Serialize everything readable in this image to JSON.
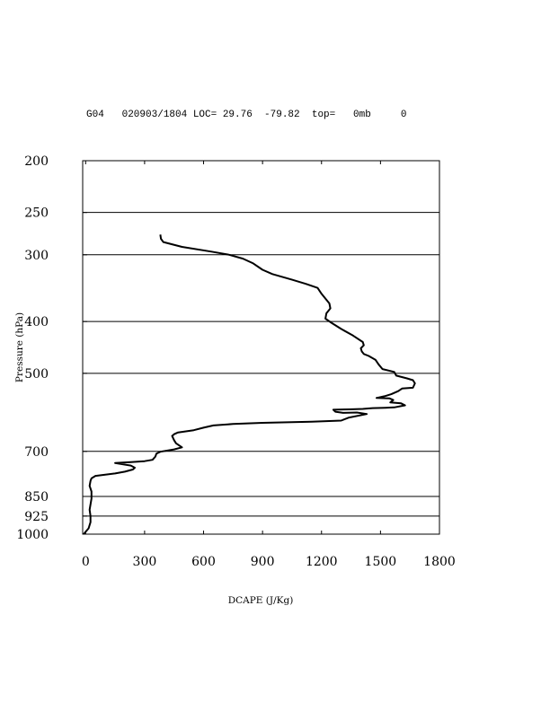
{
  "header": {
    "text": "G04   020903/1804 LOC= 29.76  -79.82  top=   0mb     0"
  },
  "chart_data": {
    "type": "line",
    "xlabel": "DCAPE (J/Kg)",
    "ylabel": "Pressure (hPa)",
    "xlim": [
      -15,
      1800
    ],
    "ylim": [
      1000,
      200
    ],
    "y_scale": "log",
    "grid": "horizontal",
    "x_ticks": [
      0,
      300,
      600,
      900,
      1200,
      1500,
      1800
    ],
    "x_tick_labels": [
      "0",
      "300",
      "600",
      "900",
      "1200",
      "1500",
      "1800"
    ],
    "y_ticks": [
      200,
      250,
      300,
      400,
      500,
      700,
      850,
      925,
      1000
    ],
    "y_tick_labels": [
      "200",
      "250",
      "300",
      "400",
      "500",
      "700",
      "850",
      "925",
      "1000"
    ],
    "gridlines_y": [
      250,
      300,
      400,
      500,
      700,
      850,
      925
    ],
    "series": [
      {
        "values": [
          [
            380,
            275
          ],
          [
            383,
            280
          ],
          [
            395,
            284
          ],
          [
            490,
            290
          ],
          [
            640,
            296
          ],
          [
            730,
            300
          ],
          [
            800,
            305
          ],
          [
            850,
            311
          ],
          [
            900,
            320
          ],
          [
            950,
            326
          ],
          [
            1050,
            334
          ],
          [
            1120,
            340
          ],
          [
            1180,
            346
          ],
          [
            1200,
            355
          ],
          [
            1240,
            370
          ],
          [
            1245,
            378
          ],
          [
            1225,
            386
          ],
          [
            1220,
            395
          ],
          [
            1250,
            402
          ],
          [
            1300,
            413
          ],
          [
            1360,
            425
          ],
          [
            1410,
            437
          ],
          [
            1415,
            443
          ],
          [
            1400,
            449
          ],
          [
            1405,
            455
          ],
          [
            1415,
            460
          ],
          [
            1440,
            464
          ],
          [
            1475,
            472
          ],
          [
            1490,
            481
          ],
          [
            1510,
            491
          ],
          [
            1570,
            497
          ],
          [
            1580,
            505
          ],
          [
            1635,
            511
          ],
          [
            1665,
            515
          ],
          [
            1675,
            522
          ],
          [
            1665,
            532
          ],
          [
            1610,
            534
          ],
          [
            1590,
            540
          ],
          [
            1555,
            547
          ],
          [
            1520,
            552
          ],
          [
            1480,
            556
          ],
          [
            1545,
            557
          ],
          [
            1565,
            561
          ],
          [
            1550,
            567
          ],
          [
            1605,
            569
          ],
          [
            1625,
            574
          ],
          [
            1570,
            579
          ],
          [
            1525,
            580
          ],
          [
            1460,
            581
          ],
          [
            1410,
            583
          ],
          [
            1340,
            584
          ],
          [
            1260,
            585
          ],
          [
            1270,
            590
          ],
          [
            1310,
            593
          ],
          [
            1380,
            592
          ],
          [
            1430,
            596
          ],
          [
            1340,
            605
          ],
          [
            1300,
            613
          ],
          [
            1150,
            616
          ],
          [
            900,
            619
          ],
          [
            750,
            622
          ],
          [
            650,
            626
          ],
          [
            600,
            632
          ],
          [
            550,
            639
          ],
          [
            470,
            645
          ],
          [
            450,
            650
          ],
          [
            440,
            655
          ],
          [
            450,
            667
          ],
          [
            460,
            676
          ],
          [
            490,
            688
          ],
          [
            450,
            694
          ],
          [
            380,
            701
          ],
          [
            360,
            707
          ],
          [
            355,
            716
          ],
          [
            340,
            726
          ],
          [
            300,
            730
          ],
          [
            230,
            733
          ],
          [
            150,
            736
          ],
          [
            230,
            744
          ],
          [
            250,
            751
          ],
          [
            240,
            757
          ],
          [
            200,
            764
          ],
          [
            150,
            770
          ],
          [
            50,
            778
          ],
          [
            30,
            786
          ],
          [
            25,
            795
          ],
          [
            20,
            812
          ],
          [
            30,
            832
          ],
          [
            30,
            858
          ],
          [
            20,
            900
          ],
          [
            25,
            925
          ],
          [
            25,
            950
          ],
          [
            15,
            975
          ],
          [
            -10,
            1000
          ]
        ]
      }
    ]
  }
}
